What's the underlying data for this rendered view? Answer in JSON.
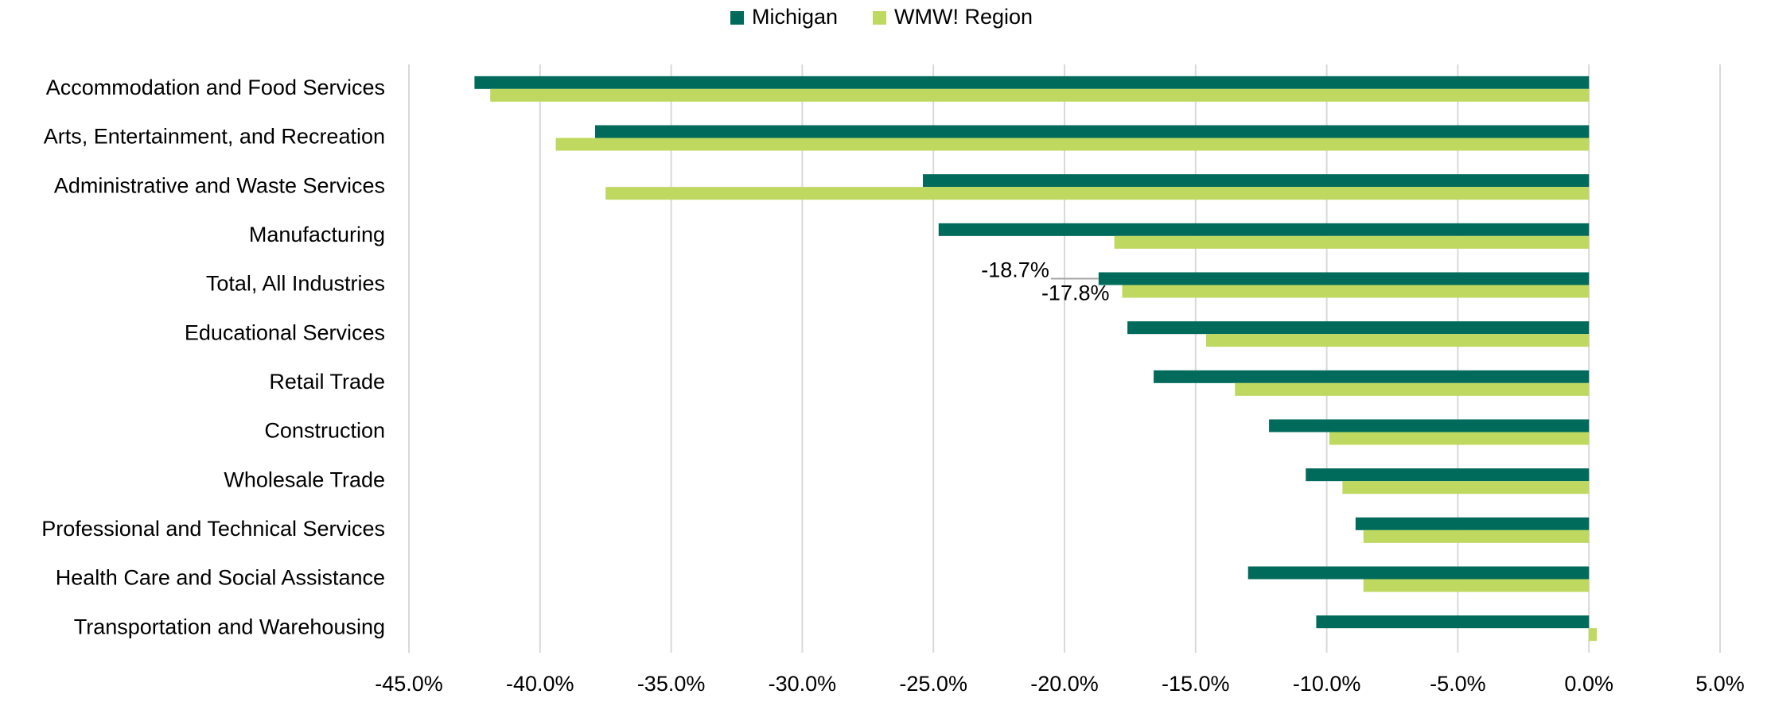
{
  "chart_data": {
    "type": "hbar",
    "categories": [
      "Accommodation and Food Services",
      "Arts, Entertainment, and Recreation",
      "Administrative and Waste Services",
      "Manufacturing",
      "Total, All Industries",
      "Educational Services",
      "Retail Trade",
      "Construction",
      "Wholesale Trade",
      "Professional and Technical Services",
      "Health Care and Social Assistance",
      "Transportation and Warehousing"
    ],
    "series": [
      {
        "name": "Michigan",
        "color": "#006b5a",
        "values": [
          -42.5,
          -37.9,
          -25.4,
          -24.8,
          -18.7,
          -17.6,
          -16.6,
          -12.2,
          -10.8,
          -8.9,
          -13.0,
          -10.4
        ],
        "value_labels": [
          null,
          null,
          null,
          null,
          "-18.7%",
          null,
          null,
          null,
          null,
          null,
          null,
          null
        ]
      },
      {
        "name": "WMW! Region",
        "color": "#bfd85f",
        "values": [
          -41.9,
          -39.4,
          -37.5,
          -18.1,
          -17.8,
          -14.6,
          -13.5,
          -9.9,
          -9.4,
          -8.6,
          -8.6,
          0.3
        ],
        "value_labels": [
          null,
          null,
          null,
          null,
          "-17.8%",
          null,
          null,
          null,
          null,
          null,
          null,
          null
        ]
      }
    ],
    "xlim": [
      -45,
      5
    ],
    "xticks": [
      {
        "value": -45,
        "label": "-45.0%"
      },
      {
        "value": -40,
        "label": "-40.0%"
      },
      {
        "value": -35,
        "label": "-35.0%"
      },
      {
        "value": -30,
        "label": "-30.0%"
      },
      {
        "value": -25,
        "label": "-25.0%"
      },
      {
        "value": -20,
        "label": "-20.0%"
      },
      {
        "value": -15,
        "label": "-15.0%"
      },
      {
        "value": -10,
        "label": "-10.0%"
      },
      {
        "value": -5,
        "label": "-5.0%"
      },
      {
        "value": 0,
        "label": "0.0%"
      },
      {
        "value": 5,
        "label": "5.0%"
      }
    ],
    "grid": true,
    "legend": "top"
  }
}
